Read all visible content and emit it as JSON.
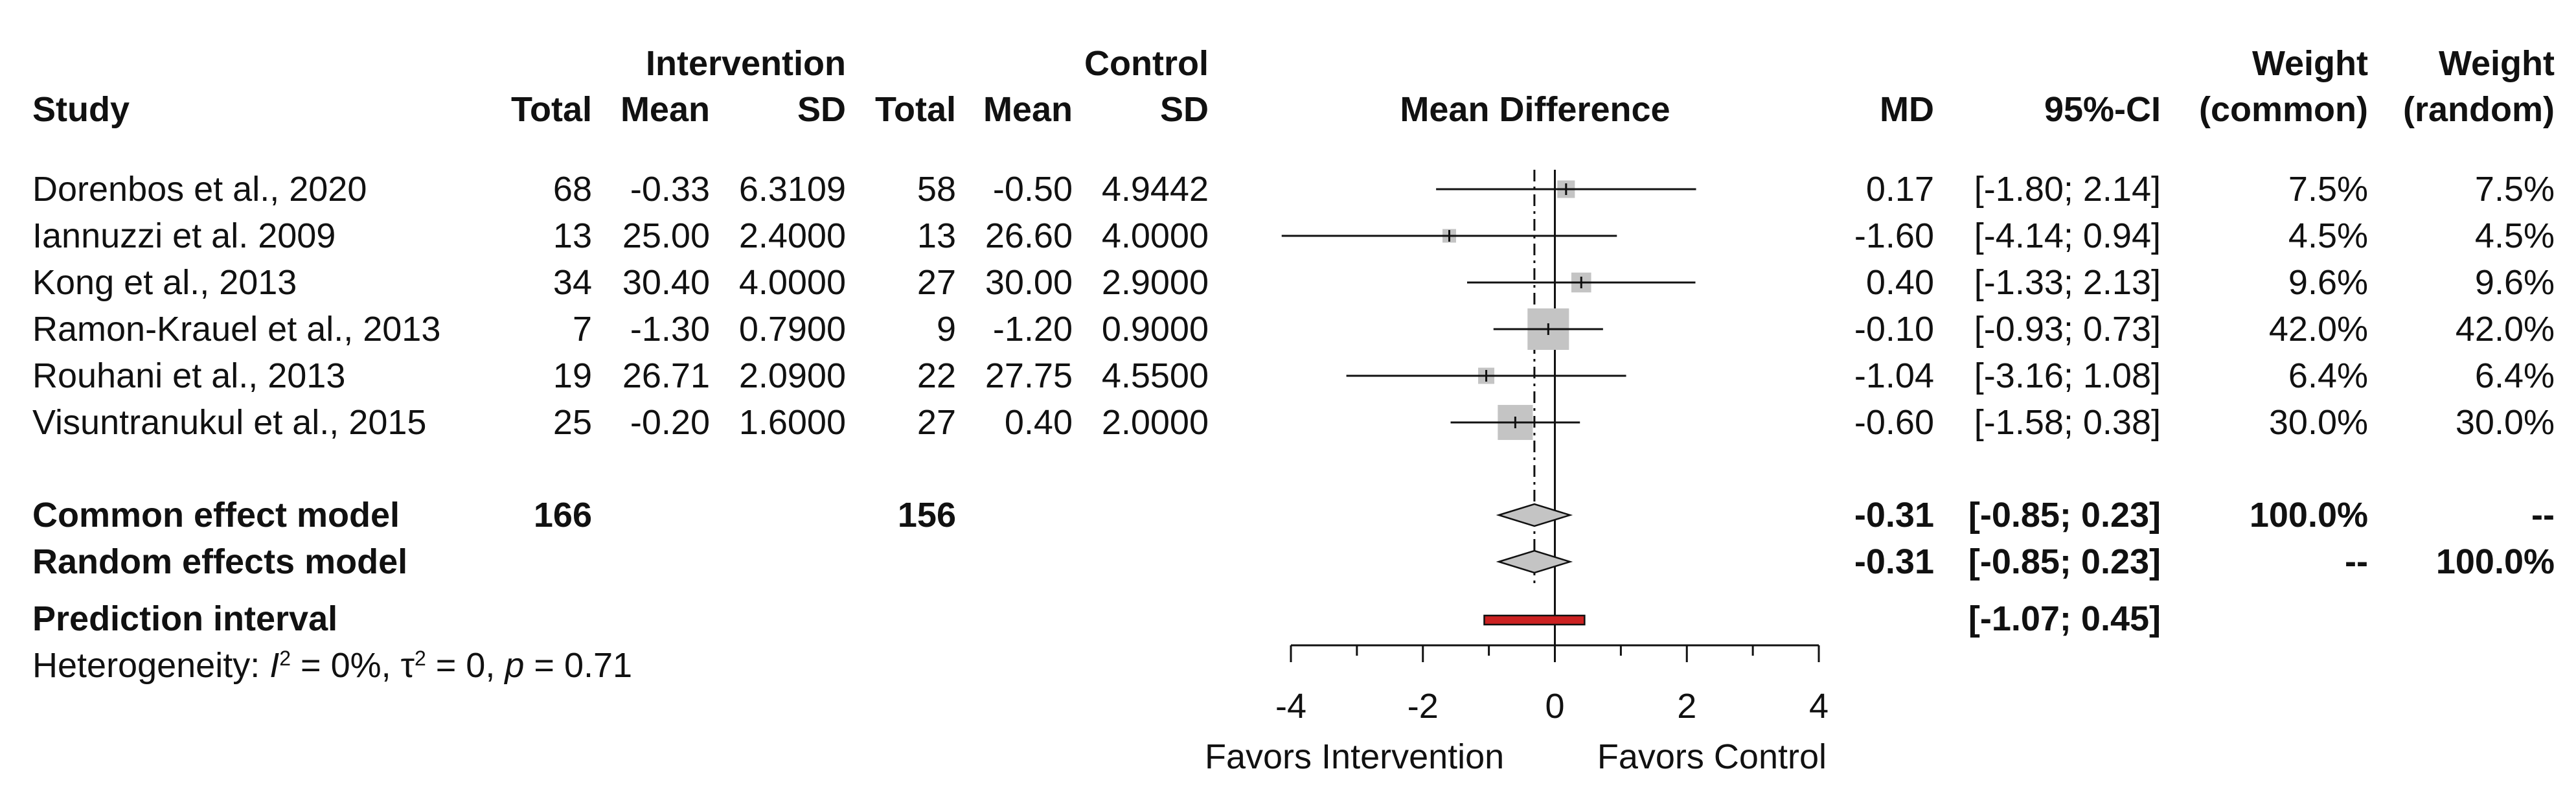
{
  "chart_data": {
    "type": "forest",
    "headers": {
      "study": "Study",
      "intervention_group": "Intervention",
      "control_group": "Control",
      "total": "Total",
      "mean": "Mean",
      "sd": "SD",
      "plot": "Mean Difference",
      "md": "MD",
      "ci": "95%-CI",
      "weight": "Weight",
      "weight_common": "(common)",
      "weight_random": "(random)"
    },
    "studies": [
      {
        "study": "Dorenbos et al., 2020",
        "int_total": "68",
        "int_mean": "-0.33",
        "int_sd": "6.3109",
        "ctl_total": "58",
        "ctl_mean": "-0.50",
        "ctl_sd": "4.9442",
        "md_text": "0.17",
        "ci_text": "[-1.80; 2.14]",
        "w_common": "7.5%",
        "w_random": "7.5%",
        "md": 0.17,
        "lo": -1.8,
        "hi": 2.14,
        "weight": 7.5
      },
      {
        "study": "Iannuzzi et al. 2009",
        "int_total": "13",
        "int_mean": "25.00",
        "int_sd": "2.4000",
        "ctl_total": "13",
        "ctl_mean": "26.60",
        "ctl_sd": "4.0000",
        "md_text": "-1.60",
        "ci_text": "[-4.14; 0.94]",
        "w_common": "4.5%",
        "w_random": "4.5%",
        "md": -1.6,
        "lo": -4.14,
        "hi": 0.94,
        "weight": 4.5
      },
      {
        "study": "Kong et al., 2013",
        "int_total": "34",
        "int_mean": "30.40",
        "int_sd": "4.0000",
        "ctl_total": "27",
        "ctl_mean": "30.00",
        "ctl_sd": "2.9000",
        "md_text": "0.40",
        "ci_text": "[-1.33; 2.13]",
        "w_common": "9.6%",
        "w_random": "9.6%",
        "md": 0.4,
        "lo": -1.33,
        "hi": 2.13,
        "weight": 9.6
      },
      {
        "study": "Ramon-Krauel et al., 2013",
        "int_total": "7",
        "int_mean": "-1.30",
        "int_sd": "0.7900",
        "ctl_total": "9",
        "ctl_mean": "-1.20",
        "ctl_sd": "0.9000",
        "md_text": "-0.10",
        "ci_text": "[-0.93; 0.73]",
        "w_common": "42.0%",
        "w_random": "42.0%",
        "md": -0.1,
        "lo": -0.93,
        "hi": 0.73,
        "weight": 42.0
      },
      {
        "study": "Rouhani et al., 2013",
        "int_total": "19",
        "int_mean": "26.71",
        "int_sd": "2.0900",
        "ctl_total": "22",
        "ctl_mean": "27.75",
        "ctl_sd": "4.5500",
        "md_text": "-1.04",
        "ci_text": "[-3.16; 1.08]",
        "w_common": "6.4%",
        "w_random": "6.4%",
        "md": -1.04,
        "lo": -3.16,
        "hi": 1.08,
        "weight": 6.4
      },
      {
        "study": "Visuntranukul et al., 2015",
        "int_total": "25",
        "int_mean": "-0.20",
        "int_sd": "1.6000",
        "ctl_total": "27",
        "ctl_mean": "0.40",
        "ctl_sd": "2.0000",
        "md_text": "-0.60",
        "ci_text": "[-1.58; 0.38]",
        "w_common": "30.0%",
        "w_random": "30.0%",
        "md": -0.6,
        "lo": -1.58,
        "hi": 0.38,
        "weight": 30.0
      }
    ],
    "summary": [
      {
        "label": "Common effect model",
        "int_total": "166",
        "ctl_total": "156",
        "md_text": "-0.31",
        "ci_text": "[-0.85; 0.23]",
        "w_common": "100.0%",
        "w_random": "--",
        "md": -0.31,
        "lo": -0.85,
        "hi": 0.23
      },
      {
        "label": "Random effects model",
        "int_total": "",
        "ctl_total": "",
        "md_text": "-0.31",
        "ci_text": "[-0.85; 0.23]",
        "w_common": "--",
        "w_random": "100.0%",
        "md": -0.31,
        "lo": -0.85,
        "hi": 0.23
      }
    ],
    "prediction_interval": {
      "label": "Prediction interval",
      "ci_text": "[-1.07; 0.45]",
      "lo": -1.07,
      "hi": 0.45
    },
    "heterogeneity": {
      "prefix": "Heterogeneity: ",
      "i2_symbol": "I",
      "i2_value": " = 0%, ",
      "tau2_symbol": "τ",
      "tau2_value": " = 0, ",
      "p_symbol": "p",
      "p_value": " = 0.71",
      "superscript": "2"
    },
    "x_axis": {
      "range": [
        -4,
        4
      ],
      "ticks": [
        -4,
        -2,
        0,
        2,
        4
      ],
      "tick_labels": [
        "-4",
        "-2",
        "0",
        "2",
        "4"
      ],
      "label_left": "Favors Intervention",
      "label_right": "Favors Control"
    },
    "null_line": 0,
    "pooled_line": -0.31,
    "colors": {
      "ci_line": "#111111",
      "weight_box": "#c4c4c4",
      "diamond": "#c4c4c4",
      "prediction_bar": "#cc2222",
      "text": "#111111"
    }
  }
}
